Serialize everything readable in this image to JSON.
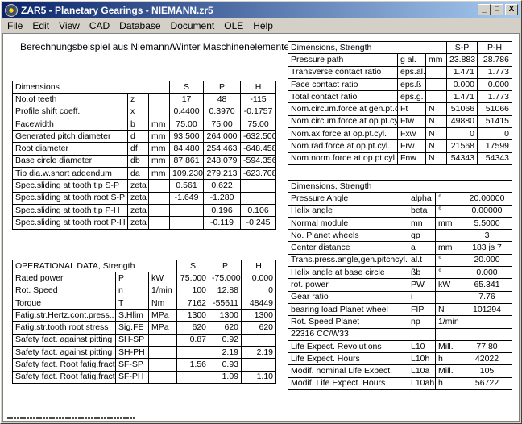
{
  "window": {
    "title": "ZAR5 - Planetary Gearings  -  NIEMANN.zr5",
    "buttons": [
      "_",
      "□",
      "X"
    ]
  },
  "menu": [
    "File",
    "Edit",
    "View",
    "CAD",
    "Database",
    "Document",
    "OLE",
    "Help"
  ],
  "caption": "Berechnungsbeispiel aus Niemann/Winter Maschinenelemente II",
  "dimensions": {
    "header": [
      "Dimensions",
      "",
      "",
      "S",
      "P",
      "H"
    ],
    "rows": [
      [
        "No.of teeth",
        "z",
        "",
        "17",
        "48",
        "-115"
      ],
      [
        "Profile shift coeff.",
        "x",
        "",
        "0.4400",
        "0.3970",
        "-0.1757"
      ],
      [
        "Facewidth",
        "b",
        "mm",
        "75.00",
        "75.00",
        "75.00"
      ],
      [
        "Generated pitch diameter",
        "d",
        "mm",
        "93.500",
        "264.000",
        "-632.500"
      ],
      [
        "Root diameter",
        "df",
        "mm",
        "84.480",
        "254.463",
        "-648.458"
      ],
      [
        "Base circle diameter",
        "db",
        "mm",
        "87.861",
        "248.079",
        "-594.356"
      ],
      [
        "Tip dia.w.short addendum",
        "da",
        "mm",
        "109.230",
        "279.213",
        "-623.708"
      ],
      [
        "Spec.sliding at tooth tip S-P",
        "zeta",
        "",
        "0.561",
        "0.622",
        ""
      ],
      [
        "Spec.sliding at tooth root S-P",
        "zeta",
        "",
        "-1.649",
        "-1.280",
        ""
      ],
      [
        "Spec.sliding at tooth tip P-H",
        "zeta",
        "",
        "",
        "0.196",
        "0.106"
      ],
      [
        "Spec.sliding at tooth root P-H",
        "zeta",
        "",
        "",
        "-0.119",
        "-0.245"
      ]
    ]
  },
  "operational": {
    "header": [
      "OPERATIONAL DATA, Strength",
      "",
      "",
      "S",
      "P",
      "H"
    ],
    "rows": [
      [
        "Rated power",
        "P",
        "kW",
        "75.000",
        "-75.000",
        "0.000"
      ],
      [
        "Rot. Speed",
        "n",
        "1/min",
        "100",
        "12.88",
        "0"
      ],
      [
        "Torque",
        "T",
        "Nm",
        "7162",
        "-55611",
        "48449"
      ],
      [
        "Fatig.str.Hertz.cont.press..",
        "S.Hlim",
        "MPa",
        "1300",
        "1300",
        "1300"
      ],
      [
        "Fatig.str.tooth root stress",
        "Sig.FE",
        "MPa",
        "620",
        "620",
        "620"
      ],
      [
        "Safety fact. against pitting",
        "SH-SP",
        "",
        "0.87",
        "0.92",
        ""
      ],
      [
        "Safety fact. against pitting",
        "SH-PH",
        "",
        "",
        "2.19",
        "2.19"
      ],
      [
        "Safety fact. Root fatig.fract.",
        "SF-SP",
        "",
        "1.56",
        "0.93",
        ""
      ],
      [
        "Safety fact. Root fatig.fract.",
        "SF-PH",
        "",
        "",
        "1.09",
        "1.10"
      ]
    ]
  },
  "contact": {
    "header": [
      "Dimensions, Strength",
      "",
      "",
      "S-P",
      "P-H"
    ],
    "rows": [
      [
        "Pressure path",
        "g al.",
        "mm",
        "23.883",
        "28.786"
      ],
      [
        "Transverse contact ratio",
        "eps.al.",
        "",
        "1.471",
        "1.773"
      ],
      [
        "Face contact ratio",
        "eps.ß",
        "",
        "0.000",
        "0.000"
      ],
      [
        "Total contact ratio",
        "eps.g.",
        "",
        "1.471",
        "1.773"
      ],
      [
        "Nom.circum.force at gen.pt.cyl",
        "Ft",
        "N",
        "51066",
        "51066"
      ],
      [
        "Nom.circum.force at op.pt.cyl.",
        "Ftw",
        "N",
        "49880",
        "51415"
      ],
      [
        "Nom.ax.force at op.pt.cyl.",
        "Fxw",
        "N",
        "0",
        "0"
      ],
      [
        "Nom.rad.force at op.pt.cyl.",
        "Frw",
        "N",
        "21568",
        "17599"
      ],
      [
        "Nom.norm.force at op.pt.cyl.",
        "Fnw",
        "N",
        "54343",
        "54343"
      ]
    ]
  },
  "general": {
    "header": [
      "Dimensions, Strength"
    ],
    "rows": [
      [
        "Pressure Angle",
        "alpha",
        "°",
        "20.00000"
      ],
      [
        "Helix angle",
        "beta",
        "°",
        "0.00000"
      ],
      [
        "Normal module",
        "mn",
        "mm",
        "5.5000"
      ],
      [
        "No. Planet wheels",
        "qp",
        "",
        "3"
      ],
      [
        "Center distance",
        "a",
        "mm",
        "183 js 7"
      ],
      [
        "Trans.press.angle,gen.pitchcyl.",
        "al.t",
        "°",
        "20.000"
      ],
      [
        "Helix angle at base circle",
        "ßb",
        "°",
        "0.000"
      ],
      [
        "rot. power",
        "PW",
        "kW",
        "65.341"
      ],
      [
        "Gear ratio",
        "i",
        "",
        "7.76"
      ],
      [
        "bearing load Planet wheel",
        "FIP",
        "N",
        "101294"
      ],
      [
        "Rot. Speed Planet",
        "np",
        "1/min",
        ""
      ],
      [
        "22316 CC/W33",
        "",
        "",
        ""
      ],
      [
        "Life Expect. Revolutions",
        "L10",
        "Mill.",
        "77.80"
      ],
      [
        "Life Expect. Hours",
        "L10h",
        "h",
        "42022"
      ],
      [
        "Modif. nominal Life Expect.",
        "L10a",
        "Mill.",
        "105"
      ],
      [
        "Modif. Life Expect. Hours",
        "L10ah",
        "h",
        "56722"
      ]
    ]
  }
}
